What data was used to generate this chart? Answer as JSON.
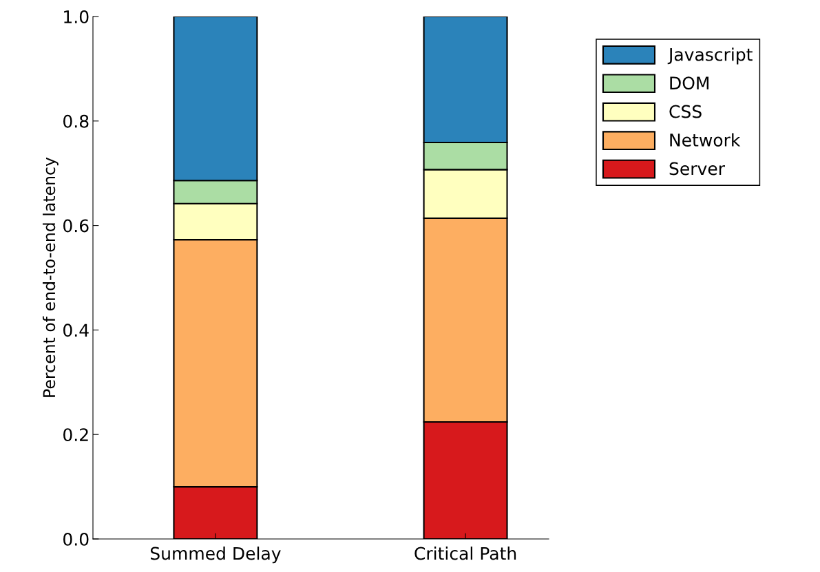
{
  "chart_data": {
    "type": "bar",
    "stacked": true,
    "ylabel": "Percent of end-to-end latency",
    "categories": [
      "Summed Delay",
      "Critical Path"
    ],
    "series": [
      {
        "name": "Server",
        "color": "#d7191c",
        "values": [
          0.1,
          0.224
        ]
      },
      {
        "name": "Network",
        "color": "#fdae61",
        "values": [
          0.473,
          0.39
        ]
      },
      {
        "name": "CSS",
        "color": "#ffffbf",
        "values": [
          0.069,
          0.093
        ]
      },
      {
        "name": "DOM",
        "color": "#abdda4",
        "values": [
          0.044,
          0.052
        ]
      },
      {
        "name": "Javascript",
        "color": "#2b83ba",
        "values": [
          0.314,
          0.241
        ]
      }
    ],
    "ylim": [
      0,
      1
    ],
    "yticks": [
      {
        "value": 0,
        "label": "0.0"
      },
      {
        "value": 0.2,
        "label": "0.2"
      },
      {
        "value": 0.4,
        "label": "0.4"
      },
      {
        "value": 0.6,
        "label": "0.6"
      },
      {
        "value": 0.8,
        "label": "0.8"
      },
      {
        "value": 1,
        "label": "1.0"
      }
    ],
    "grid": false,
    "legend": "top right"
  }
}
